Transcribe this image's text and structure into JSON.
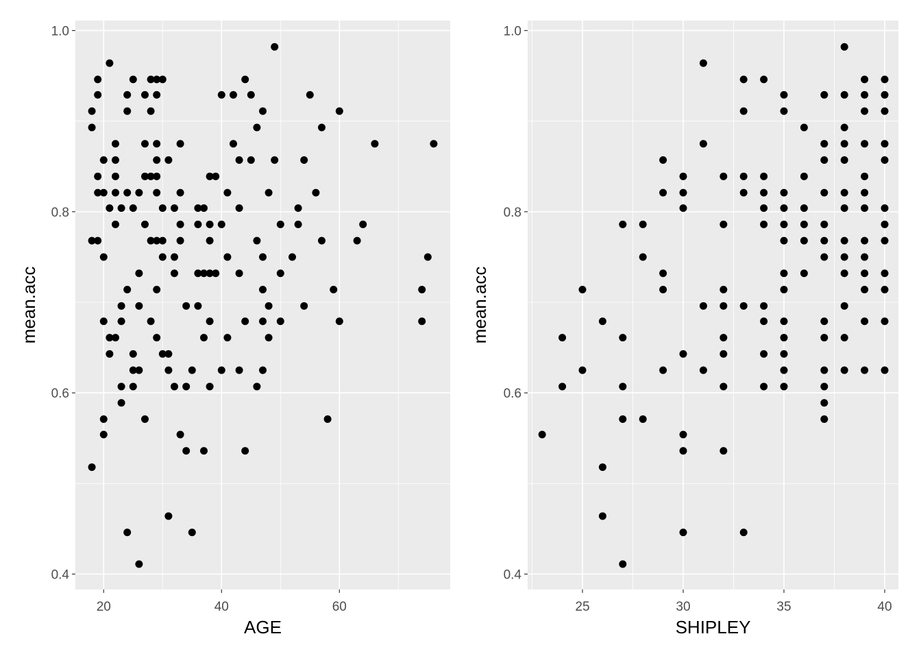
{
  "chart_data": [
    {
      "type": "scatter",
      "xlabel": "AGE",
      "ylabel": "mean.acc",
      "color": "#000000",
      "grid": true,
      "xlim": [
        15.2,
        78.8
      ],
      "ylim": [
        0.383,
        1.011
      ],
      "xticks": [
        20,
        40,
        60
      ],
      "yticks": [
        {
          "value": 0.4,
          "label": "0.4"
        },
        {
          "value": 0.6,
          "label": "0.6"
        },
        {
          "value": 0.8,
          "label": "0.8"
        },
        {
          "value": 1,
          "label": "1.0"
        }
      ],
      "x": [
        18,
        18,
        18,
        18,
        19,
        19,
        19,
        19,
        19,
        20,
        20,
        20,
        20,
        20,
        20,
        21,
        21,
        21,
        21,
        22,
        22,
        22,
        22,
        22,
        22,
        23,
        23,
        23,
        23,
        23,
        24,
        24,
        24,
        24,
        24,
        25,
        25,
        25,
        25,
        25,
        26,
        26,
        26,
        26,
        26,
        27,
        27,
        27,
        27,
        27,
        28,
        28,
        28,
        28,
        28,
        29,
        29,
        29,
        29,
        29,
        29,
        29,
        29,
        29,
        30,
        30,
        30,
        30,
        30,
        31,
        31,
        31,
        31,
        32,
        32,
        32,
        32,
        33,
        33,
        33,
        33,
        33,
        34,
        34,
        34,
        35,
        35,
        36,
        36,
        36,
        36,
        37,
        37,
        37,
        37,
        38,
        38,
        38,
        38,
        38,
        38,
        39,
        39,
        40,
        40,
        40,
        41,
        41,
        41,
        42,
        42,
        43,
        43,
        43,
        43,
        44,
        44,
        44,
        45,
        45,
        46,
        46,
        46,
        47,
        47,
        47,
        47,
        47,
        48,
        48,
        48,
        49,
        49,
        50,
        50,
        50,
        52,
        53,
        53,
        54,
        54,
        55,
        56,
        57,
        57,
        58,
        59,
        60,
        60,
        63,
        64,
        66,
        74,
        74,
        75,
        76
      ],
      "y": [
        0.911,
        0.893,
        0.768,
        0.518,
        0.946,
        0.929,
        0.839,
        0.821,
        0.768,
        0.857,
        0.821,
        0.75,
        0.679,
        0.571,
        0.554,
        0.964,
        0.804,
        0.661,
        0.643,
        0.875,
        0.857,
        0.839,
        0.821,
        0.786,
        0.661,
        0.804,
        0.696,
        0.679,
        0.607,
        0.589,
        0.929,
        0.911,
        0.821,
        0.714,
        0.446,
        0.946,
        0.804,
        0.643,
        0.625,
        0.607,
        0.821,
        0.732,
        0.696,
        0.625,
        0.411,
        0.929,
        0.875,
        0.839,
        0.786,
        0.571,
        0.946,
        0.911,
        0.839,
        0.768,
        0.679,
        0.946,
        0.929,
        0.875,
        0.857,
        0.839,
        0.821,
        0.768,
        0.714,
        0.661,
        0.946,
        0.804,
        0.768,
        0.75,
        0.643,
        0.857,
        0.643,
        0.625,
        0.464,
        0.804,
        0.75,
        0.732,
        0.607,
        0.875,
        0.821,
        0.786,
        0.768,
        0.554,
        0.696,
        0.607,
        0.536,
        0.625,
        0.446,
        0.804,
        0.786,
        0.732,
        0.696,
        0.804,
        0.732,
        0.661,
        0.536,
        0.839,
        0.786,
        0.768,
        0.732,
        0.679,
        0.607,
        0.839,
        0.732,
        0.929,
        0.786,
        0.625,
        0.821,
        0.75,
        0.661,
        0.929,
        0.875,
        0.857,
        0.804,
        0.732,
        0.625,
        0.946,
        0.679,
        0.536,
        0.929,
        0.857,
        0.893,
        0.768,
        0.607,
        0.911,
        0.75,
        0.714,
        0.679,
        0.625,
        0.821,
        0.696,
        0.661,
        0.982,
        0.857,
        0.786,
        0.732,
        0.679,
        0.75,
        0.804,
        0.786,
        0.857,
        0.696,
        0.929,
        0.821,
        0.893,
        0.768,
        0.571,
        0.714,
        0.911,
        0.679,
        0.768,
        0.786,
        0.875,
        0.714,
        0.679,
        0.75,
        0.875
      ]
    },
    {
      "type": "scatter",
      "xlabel": "SHIPLEY",
      "ylabel": "mean.acc",
      "color": "#000000",
      "grid": true,
      "xlim": [
        22.28,
        40.68
      ],
      "ylim": [
        0.383,
        1.011
      ],
      "xticks": [
        25,
        30,
        35,
        40
      ],
      "yticks": [
        {
          "value": 0.4,
          "label": "0.4"
        },
        {
          "value": 0.6,
          "label": "0.6"
        },
        {
          "value": 0.8,
          "label": "0.8"
        },
        {
          "value": 1,
          "label": "1.0"
        }
      ],
      "x": [
        23,
        24,
        24,
        25,
        25,
        26,
        26,
        26,
        27,
        27,
        27,
        27,
        27,
        28,
        28,
        28,
        29,
        29,
        29,
        29,
        29,
        30,
        30,
        30,
        30,
        30,
        30,
        30,
        31,
        31,
        31,
        31,
        32,
        32,
        32,
        32,
        32,
        32,
        32,
        32,
        33,
        33,
        33,
        33,
        33,
        33,
        34,
        34,
        34,
        34,
        34,
        34,
        34,
        34,
        34,
        35,
        35,
        35,
        35,
        35,
        35,
        35,
        35,
        35,
        35,
        35,
        35,
        35,
        36,
        36,
        36,
        36,
        36,
        36,
        37,
        37,
        37,
        37,
        37,
        37,
        37,
        37,
        37,
        37,
        37,
        37,
        37,
        38,
        38,
        38,
        38,
        38,
        38,
        38,
        38,
        38,
        38,
        38,
        38,
        38,
        39,
        39,
        39,
        39,
        39,
        39,
        39,
        39,
        39,
        39,
        39,
        39,
        39,
        40,
        40,
        40,
        40,
        40,
        40,
        40,
        40,
        40,
        40,
        40,
        40
      ],
      "y": [
        0.554,
        0.661,
        0.607,
        0.714,
        0.625,
        0.679,
        0.518,
        0.464,
        0.786,
        0.661,
        0.607,
        0.571,
        0.411,
        0.786,
        0.75,
        0.571,
        0.857,
        0.821,
        0.732,
        0.714,
        0.625,
        0.839,
        0.821,
        0.804,
        0.643,
        0.554,
        0.536,
        0.446,
        0.964,
        0.875,
        0.696,
        0.625,
        0.839,
        0.786,
        0.714,
        0.696,
        0.661,
        0.643,
        0.607,
        0.536,
        0.946,
        0.911,
        0.839,
        0.821,
        0.696,
        0.446,
        0.946,
        0.839,
        0.821,
        0.804,
        0.786,
        0.696,
        0.679,
        0.643,
        0.607,
        0.929,
        0.911,
        0.821,
        0.804,
        0.786,
        0.768,
        0.732,
        0.714,
        0.679,
        0.661,
        0.643,
        0.625,
        0.607,
        0.893,
        0.839,
        0.804,
        0.786,
        0.768,
        0.732,
        0.929,
        0.875,
        0.857,
        0.821,
        0.786,
        0.768,
        0.75,
        0.679,
        0.661,
        0.625,
        0.607,
        0.589,
        0.571,
        0.982,
        0.929,
        0.893,
        0.875,
        0.857,
        0.821,
        0.804,
        0.768,
        0.75,
        0.732,
        0.696,
        0.661,
        0.625,
        0.946,
        0.929,
        0.911,
        0.875,
        0.839,
        0.821,
        0.804,
        0.768,
        0.75,
        0.732,
        0.714,
        0.679,
        0.625,
        0.946,
        0.929,
        0.911,
        0.875,
        0.857,
        0.804,
        0.786,
        0.768,
        0.732,
        0.714,
        0.679,
        0.625
      ]
    }
  ]
}
